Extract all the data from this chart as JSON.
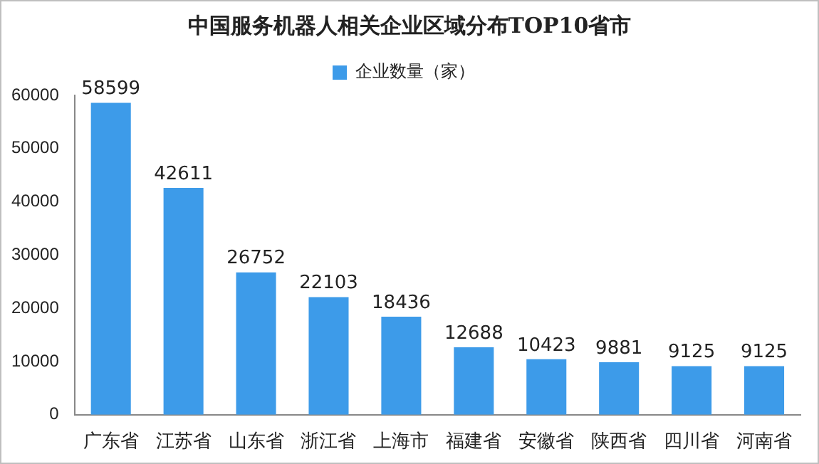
{
  "chart_data": {
    "type": "bar",
    "title": "中国服务机器人相关企业区域分布TOP10省市",
    "categories": [
      "广东省",
      "江苏省",
      "山东省",
      "浙江省",
      "上海市",
      "福建省",
      "安徽省",
      "陕西省",
      "四川省",
      "河南省"
    ],
    "series": [
      {
        "name": "企业数量（家）",
        "color": "#3d9be9",
        "values": [
          58599,
          42611,
          26752,
          22103,
          18436,
          12688,
          10423,
          9881,
          9125,
          9125
        ]
      }
    ],
    "ylim": [
      0,
      60000
    ],
    "yticks": [
      0,
      10000,
      20000,
      30000,
      40000,
      50000,
      60000
    ],
    "grid": false,
    "legend": "top",
    "data_labels": true
  }
}
